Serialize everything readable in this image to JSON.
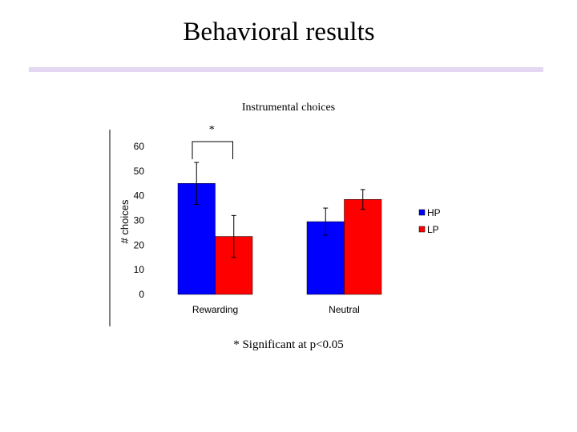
{
  "slide": {
    "title": "Behavioral results",
    "footnote": "* Significant at p<0.05",
    "rule_color": "#e3d7f4"
  },
  "chart_data": {
    "type": "bar",
    "title": "Instrumental choices",
    "xlabel": "",
    "ylabel": "# choices",
    "categories": [
      "Rewarding",
      "Neutral"
    ],
    "series": [
      {
        "name": "HP",
        "color": "#0000ff",
        "values": [
          45,
          29.5
        ],
        "error": [
          8.5,
          5.5
        ]
      },
      {
        "name": "LP",
        "color": "#ff0000",
        "values": [
          23.5,
          38.5
        ],
        "error": [
          8.5,
          4
        ]
      }
    ],
    "ylim": [
      0,
      60
    ],
    "yticks": [
      0,
      10,
      20,
      30,
      40,
      50,
      60
    ],
    "grid": false,
    "legend": "right",
    "significance": [
      {
        "category": "Rewarding",
        "label": "*"
      }
    ]
  }
}
